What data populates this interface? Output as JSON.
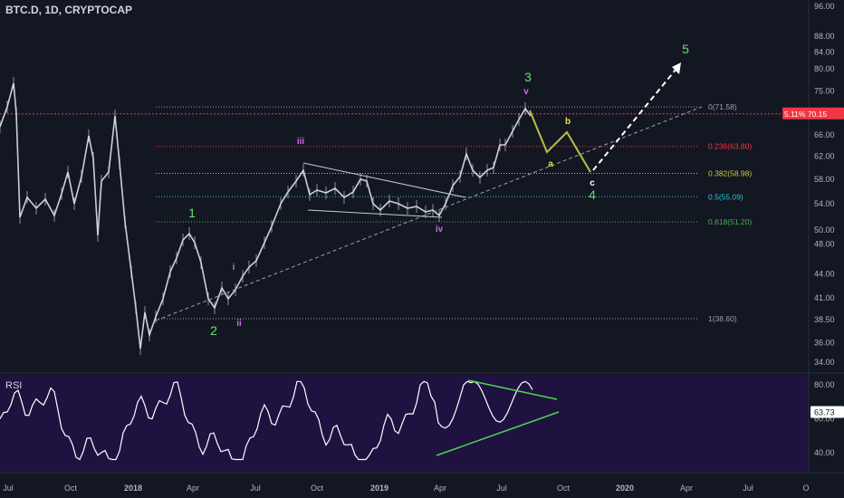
{
  "header": {
    "symbol": "BTC.D, 1D, CRYPTOCAP"
  },
  "rsi_panel": {
    "label": "RSI",
    "value": "63.73"
  },
  "price_tag": {
    "text": "5.11% 70.15",
    "color": "#f23645"
  },
  "colors": {
    "background": "#131722",
    "candle": "#e0e3eb",
    "resistance": "#f23645",
    "green_wave": "#66e06b",
    "magenta_wave": "#d066e6",
    "yellow_wave": "#e7e34d",
    "rsi_line": "#ffffff",
    "rsi_bg": "#1f1240",
    "trend": "#9aa0ad"
  },
  "chart_data": {
    "type": "line",
    "title": "BTC.D, 1D, CRYPTOCAP",
    "y_ticks": [
      "96.00",
      "88.00",
      "84.00",
      "80.00",
      "75.00",
      "70.00",
      "66.00",
      "62.00",
      "58.00",
      "54.00",
      "50.00",
      "48.00",
      "44.00",
      "41.00",
      "38.50",
      "36.00",
      "34.00"
    ],
    "x_ticks": [
      "Jul",
      "Oct",
      "2018",
      "Apr",
      "Jul",
      "Oct",
      "2019",
      "Apr",
      "Jul",
      "Oct",
      "2020",
      "Apr",
      "Jul",
      "O"
    ],
    "rsi_ticks": [
      "80.00",
      "60.00",
      "40.00"
    ],
    "fib_levels": [
      {
        "label": "0(71.58)",
        "value": 71.58,
        "color": "#9aa0ad"
      },
      {
        "label": "0.236(63.80)",
        "value": 63.8,
        "color": "#f23645"
      },
      {
        "label": "0.382(58.98)",
        "value": 58.98,
        "color": "#c9c93b"
      },
      {
        "label": "0.5(55.09)",
        "value": 55.09,
        "color": "#26c6da"
      },
      {
        "label": "0.618(51.20)",
        "value": 51.2,
        "color": "#4caf50"
      },
      {
        "label": "1(38.60)",
        "value": 38.6,
        "color": "#9aa0ad"
      }
    ],
    "wave_labels": [
      {
        "text": "1",
        "color": "#66e06b"
      },
      {
        "text": "2",
        "color": "#66e06b"
      },
      {
        "text": "3",
        "color": "#66e06b"
      },
      {
        "text": "4",
        "color": "#66e06b"
      },
      {
        "text": "5",
        "color": "#66e06b"
      },
      {
        "text": "i",
        "color": "#d066e6"
      },
      {
        "text": "ii",
        "color": "#d066e6"
      },
      {
        "text": "iii",
        "color": "#d066e6"
      },
      {
        "text": "iv",
        "color": "#d066e6"
      },
      {
        "text": "v",
        "color": "#d066e6"
      },
      {
        "text": "a",
        "color": "#e7e34d"
      },
      {
        "text": "b",
        "color": "#e7e34d"
      },
      {
        "text": "c",
        "color": "#ffffff"
      }
    ],
    "resistance_level": 70.15
  }
}
